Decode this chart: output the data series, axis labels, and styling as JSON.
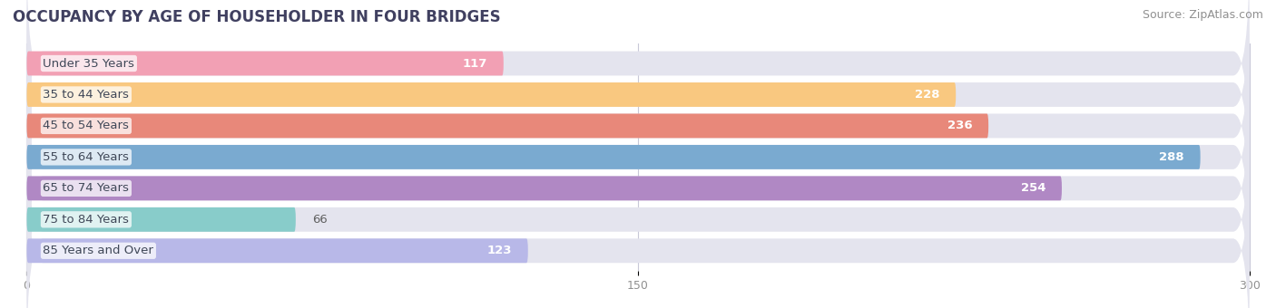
{
  "title": "OCCUPANCY BY AGE OF HOUSEHOLDER IN FOUR BRIDGES",
  "source": "Source: ZipAtlas.com",
  "categories": [
    "Under 35 Years",
    "35 to 44 Years",
    "45 to 54 Years",
    "55 to 64 Years",
    "65 to 74 Years",
    "75 to 84 Years",
    "85 Years and Over"
  ],
  "values": [
    117,
    228,
    236,
    288,
    254,
    66,
    123
  ],
  "bar_colors": [
    "#F2A0B4",
    "#F9C880",
    "#E8887A",
    "#7AAAD0",
    "#B088C4",
    "#88CCCA",
    "#B8B8E8"
  ],
  "bar_bg_color": "#E4E4EE",
  "xlim": [
    -5,
    305
  ],
  "data_xlim": [
    0,
    300
  ],
  "xticks": [
    0,
    150,
    300
  ],
  "title_fontsize": 12,
  "source_fontsize": 9,
  "label_fontsize": 9.5,
  "tick_fontsize": 9,
  "background_color": "#FFFFFF",
  "title_color": "#404060",
  "source_color": "#909090",
  "label_color": "#404858",
  "value_color_inside": "#FFFFFF",
  "value_color_outside": "#606060",
  "bar_height": 0.78,
  "bar_gap": 0.22
}
